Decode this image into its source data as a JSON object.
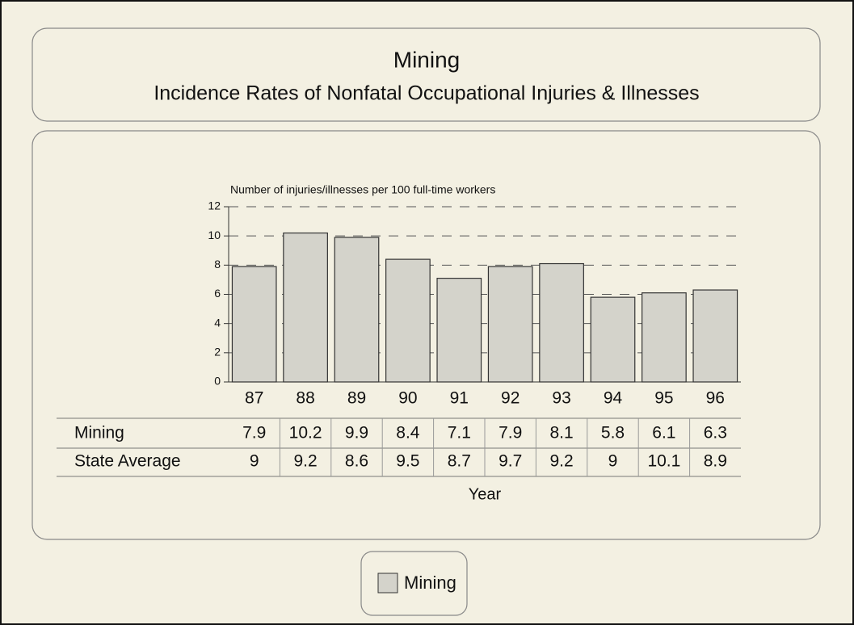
{
  "chart_data": {
    "type": "bar",
    "title": "Mining",
    "subtitle": "Incidence Rates of Nonfatal Occupational Injuries & Illnesses",
    "y_label": "Number of injuries/illnesses per 100 full-time workers",
    "x_label": "Year",
    "categories": [
      "87",
      "88",
      "89",
      "90",
      "91",
      "92",
      "93",
      "94",
      "95",
      "96"
    ],
    "series": [
      {
        "name": "Mining",
        "color": "#d4d3cb",
        "values": [
          7.9,
          10.2,
          9.9,
          8.4,
          7.1,
          7.9,
          8.1,
          5.8,
          6.1,
          6.3
        ]
      },
      {
        "name": "State Average",
        "values": [
          9,
          9.2,
          8.6,
          9.5,
          8.7,
          9.7,
          9.2,
          9,
          10.1,
          8.9
        ]
      }
    ],
    "ylim": [
      0,
      12
    ],
    "yticks": [
      0,
      2,
      4,
      6,
      8,
      10,
      12
    ],
    "grid": true
  }
}
